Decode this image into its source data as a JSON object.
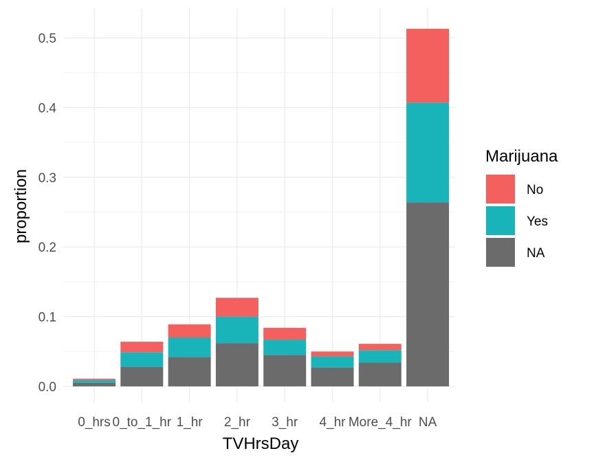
{
  "chart_data": {
    "type": "bar",
    "stacked": true,
    "title": "",
    "xlabel": "TVHrsDay",
    "ylabel": "proportion",
    "categories": [
      "0_hrs",
      "0_to_1_hr",
      "1_hr",
      "2_hr",
      "3_hr",
      "4_hr",
      "More_4_hr",
      "NA"
    ],
    "ylim": [
      0,
      0.52
    ],
    "yticks": [
      "0.0",
      "0.1",
      "0.2",
      "0.3",
      "0.4",
      "0.5"
    ],
    "ytick_values": [
      0,
      0.1,
      0.2,
      0.3,
      0.4,
      0.5
    ],
    "grid": true,
    "legend": {
      "title": "Marijuana",
      "position": "right"
    },
    "series": [
      {
        "name": "NA",
        "color": "#6b6b6b",
        "values": [
          0.005,
          0.028,
          0.042,
          0.062,
          0.045,
          0.027,
          0.034,
          0.264
        ]
      },
      {
        "name": "Yes",
        "color": "#19b4b9",
        "values": [
          0.004,
          0.021,
          0.028,
          0.038,
          0.022,
          0.016,
          0.018,
          0.143
        ]
      },
      {
        "name": "No",
        "color": "#f4605e",
        "values": [
          0.002,
          0.015,
          0.019,
          0.027,
          0.017,
          0.007,
          0.009,
          0.106
        ]
      }
    ],
    "legend_order": [
      "No",
      "Yes",
      "NA"
    ]
  }
}
